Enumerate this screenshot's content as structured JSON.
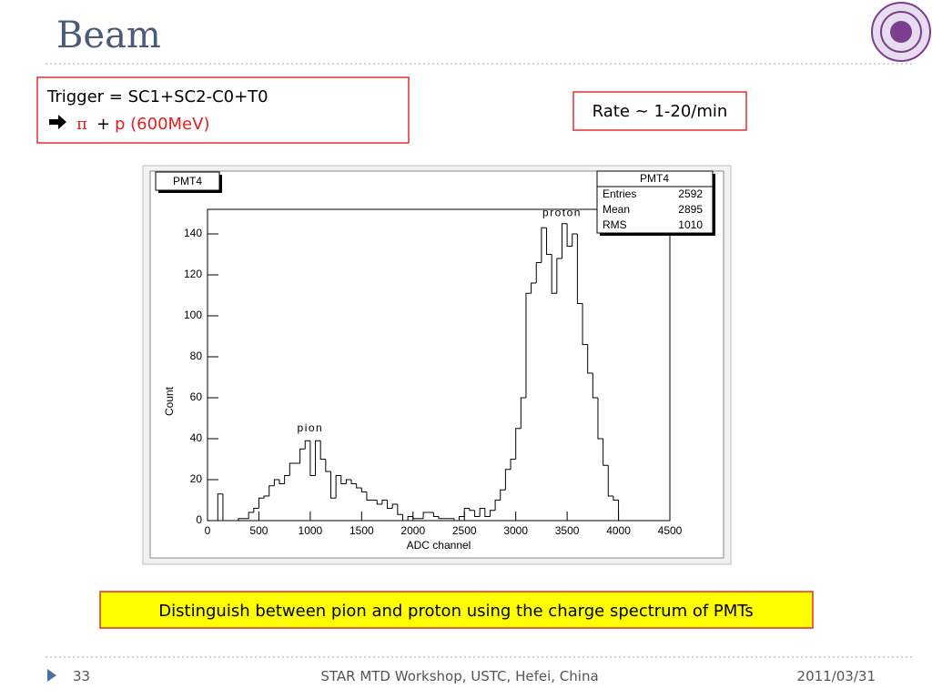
{
  "slide": {
    "title": "Beam",
    "trigger": "Trigger = SC1+SC2-C0+T0",
    "pi": "π",
    "plus": "+",
    "proton": "p (600MeV)",
    "rate": "Rate ~ 1-20/min",
    "caption": "Distinguish between pion and proton using the charge spectrum of PMTs",
    "footer": {
      "page": "33",
      "event": "STAR MTD Workshop, USTC, Hefei, China",
      "date": "2011/03/31"
    }
  },
  "chart_data": {
    "type": "histogram",
    "title": "PMT4",
    "x_label": "ADC channel",
    "y_label": "Count",
    "bins": [
      0,
      50,
      100,
      150,
      200,
      250,
      300,
      350,
      400,
      450,
      500,
      550,
      600,
      650,
      700,
      750,
      800,
      850,
      900,
      950,
      1000,
      1050,
      1100,
      1150,
      1200,
      1250,
      1300,
      1350,
      1400,
      1450,
      1500,
      1550,
      1600,
      1650,
      1700,
      1750,
      1800,
      1850,
      1900,
      1950,
      2000,
      2050,
      2100,
      2150,
      2200,
      2250,
      2300,
      2350,
      2400,
      2450,
      2500,
      2550,
      2600,
      2650,
      2700,
      2750,
      2800,
      2850,
      2900,
      2950,
      3000,
      3050,
      3100,
      3150,
      3200,
      3250,
      3300,
      3350,
      3400,
      3450,
      3500,
      3550,
      3600,
      3650,
      3700,
      3750,
      3800,
      3850,
      3900,
      3950,
      4000,
      4050,
      4100,
      4150,
      4200,
      4250,
      4300,
      4350,
      4400,
      4450,
      4500
    ],
    "values": [
      0,
      0,
      13,
      0,
      0,
      0,
      1,
      1,
      4,
      6,
      11,
      12,
      17,
      20,
      18,
      22,
      28,
      28,
      35,
      39,
      22,
      39,
      30,
      24,
      11,
      22,
      18,
      20,
      18,
      16,
      14,
      10,
      10,
      8,
      10,
      6,
      8,
      3,
      0,
      2,
      1,
      1,
      4,
      4,
      2,
      1,
      1,
      1,
      0,
      2,
      6,
      5,
      2,
      6,
      2,
      5,
      10,
      15,
      25,
      30,
      45,
      60,
      111,
      116,
      126,
      143,
      130,
      111,
      128,
      145,
      134,
      140,
      106,
      86,
      72,
      60,
      40,
      27,
      12,
      10,
      0,
      0,
      0,
      0,
      0,
      0,
      0,
      0,
      0,
      0
    ],
    "color": "#000000",
    "xlim": [
      0,
      4500
    ],
    "xticks": [
      0,
      500,
      1000,
      1500,
      2000,
      2500,
      3000,
      3500,
      4000,
      4500
    ],
    "ylim": [
      0,
      152
    ],
    "yticks": [
      0,
      20,
      40,
      60,
      80,
      100,
      120,
      140
    ],
    "annotations": [
      {
        "text": "pion",
        "x": 1000,
        "y": 45
      },
      {
        "text": "proton",
        "x": 3450,
        "y": 150
      }
    ],
    "stats": {
      "title": "PMT4",
      "rows": [
        [
          "Entries",
          2592
        ],
        [
          "Mean",
          2895
        ],
        [
          "RMS",
          1010
        ]
      ]
    }
  }
}
